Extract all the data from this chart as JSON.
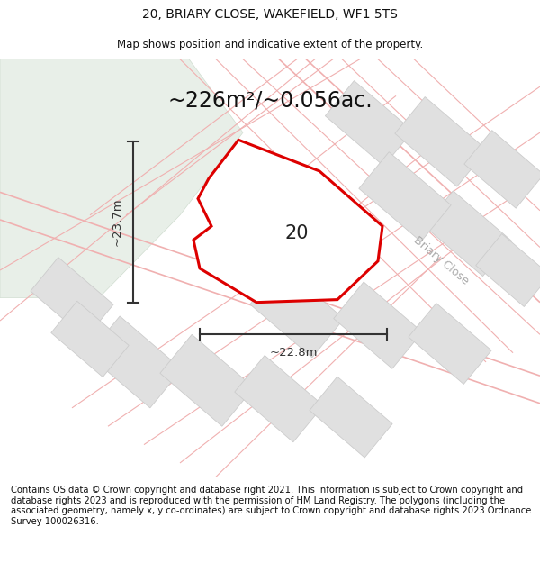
{
  "title_line1": "20, BRIARY CLOSE, WAKEFIELD, WF1 5TS",
  "title_line2": "Map shows position and indicative extent of the property.",
  "area_label": "~226m²/~0.056ac.",
  "number_label": "20",
  "dim_width": "~22.8m",
  "dim_height": "~23.7m",
  "street_label": "Briary Close",
  "footer_text": "Contains OS data © Crown copyright and database right 2021. This information is subject to Crown copyright and database rights 2023 and is reproduced with the permission of HM Land Registry. The polygons (including the associated geometry, namely x, y co-ordinates) are subject to Crown copyright and database rights 2023 Ordnance Survey 100026316.",
  "map_bg": "#f8f8f8",
  "plot_fill": "#ffffff",
  "plot_stroke": "#dd0000",
  "neighbor_fill": "#e0e0e0",
  "neighbor_stroke": "#cccccc",
  "parcel_line": "#f0b0b0",
  "green_area": "#e8efe8",
  "green_stroke": "#d0ddd0",
  "title_fontsize": 10,
  "subtitle_fontsize": 8.5,
  "area_fontsize": 17,
  "number_fontsize": 15,
  "dim_fontsize": 9.5,
  "street_fontsize": 9,
  "footer_fontsize": 7.2
}
